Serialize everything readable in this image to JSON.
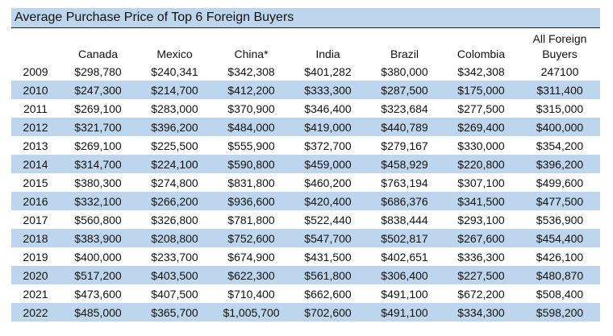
{
  "title": "Average Purchase Price of Top 6 Foreign Buyers",
  "colors": {
    "band": "#bdd6ee",
    "rule": "#222222"
  },
  "columns": [
    "Canada",
    "Mexico",
    "China*",
    "India",
    "Brazil",
    "Colombia",
    "All Foreign Buyers"
  ],
  "rows": [
    {
      "year": "2009",
      "values": [
        "$298,780",
        "$240,341",
        "$342,308",
        "$401,282",
        "$380,000",
        "$342,308",
        "247100"
      ]
    },
    {
      "year": "2010",
      "values": [
        "$247,300",
        "$214,700",
        "$412,200",
        "$333,300",
        "$287,500",
        "$175,000",
        "$311,400"
      ]
    },
    {
      "year": "2011",
      "values": [
        "$269,100",
        "$283,000",
        "$370,900",
        "$346,400",
        "$323,684",
        "$277,500",
        "$315,000"
      ]
    },
    {
      "year": "2012",
      "values": [
        "$321,700",
        "$396,200",
        "$484,000",
        "$419,000",
        "$440,789",
        "$269,400",
        "$400,000"
      ]
    },
    {
      "year": "2013",
      "values": [
        "$269,100",
        "$225,500",
        "$555,900",
        "$372,700",
        "$279,167",
        "$330,000",
        "$354,200"
      ]
    },
    {
      "year": "2014",
      "values": [
        "$314,700",
        "$224,100",
        "$590,800",
        "$459,000",
        "$458,929",
        "$220,800",
        "$396,200"
      ]
    },
    {
      "year": "2015",
      "values": [
        "$380,300",
        "$274,800",
        "$831,800",
        "$460,200",
        "$763,194",
        "$307,100",
        "$499,600"
      ]
    },
    {
      "year": "2016",
      "values": [
        "$332,100",
        "$266,200",
        "$936,600",
        "$420,400",
        "$686,376",
        "$341,500",
        "$477,500"
      ]
    },
    {
      "year": "2017",
      "values": [
        "$560,800",
        "$326,800",
        "$781,800",
        "$522,440",
        "$838,444",
        "$293,100",
        "$536,900"
      ]
    },
    {
      "year": "2018",
      "values": [
        "$383,900",
        "$208,800",
        "$752,600",
        "$547,700",
        "$502,817",
        "$267,600",
        "$454,400"
      ]
    },
    {
      "year": "2019",
      "values": [
        "$400,000",
        "$233,700",
        "$674,900",
        "$431,500",
        "$402,651",
        "$336,300",
        "$426,100"
      ]
    },
    {
      "year": "2020",
      "values": [
        "$517,200",
        "$403,500",
        "$622,300",
        "$561,800",
        "$306,400",
        "$227,500",
        "$480,870"
      ]
    },
    {
      "year": "2021",
      "values": [
        "$473,600",
        "$407,500",
        "$710,400",
        "$662,600",
        "$491,100",
        "$672,200",
        "$508,400"
      ]
    },
    {
      "year": "2022",
      "values": [
        "$485,000",
        "$365,700",
        "$1,005,700",
        "$702,600",
        "$491,100",
        "$334,300",
        "$598,200"
      ]
    }
  ]
}
